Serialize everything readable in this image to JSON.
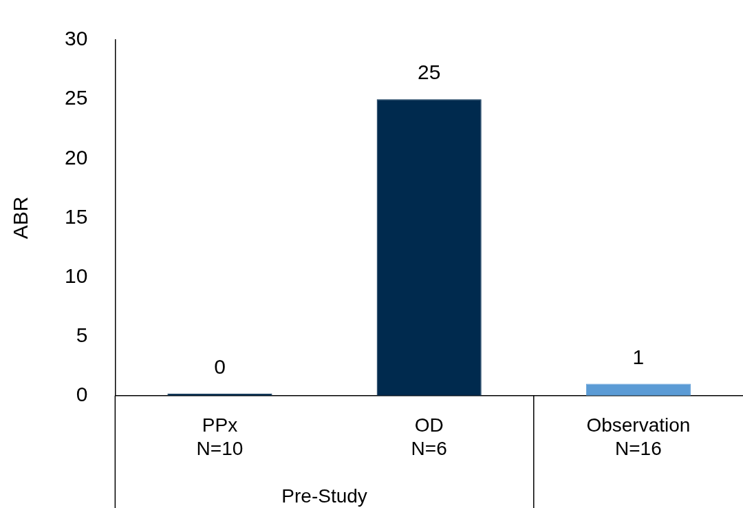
{
  "chart_data": {
    "type": "bar",
    "ylabel": "ABR",
    "categories": [
      "PPx\nN=10",
      "OD\nN=6",
      "Observation\nN=16"
    ],
    "values": [
      0,
      25,
      1
    ],
    "colors": [
      "#002a4e",
      "#002a4e",
      "#5b9bd5"
    ],
    "ylim": [
      0,
      30
    ],
    "yticks": [
      0,
      5,
      10,
      15,
      20,
      25,
      30
    ],
    "data_labels": true,
    "grid": false,
    "legend": false,
    "annotations": [
      "Pre-Study"
    ]
  }
}
